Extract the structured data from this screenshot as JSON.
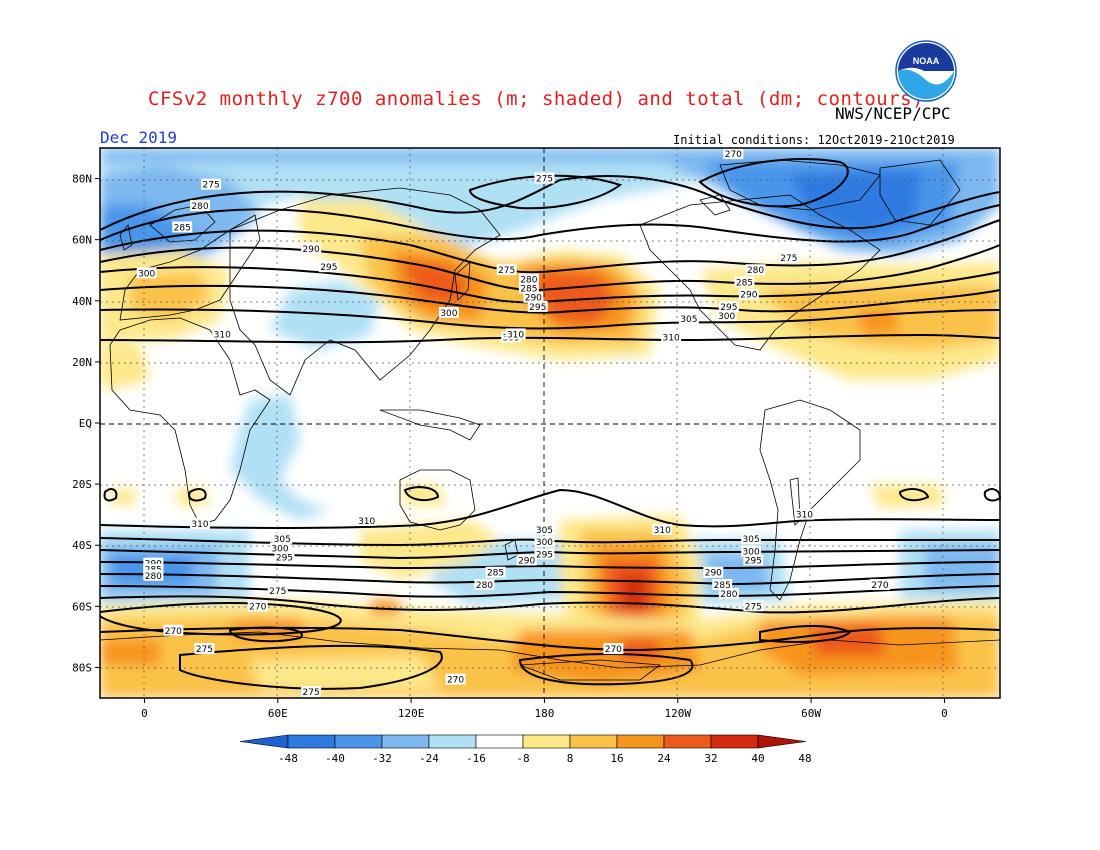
{
  "title": "CFSv2 monthly z700 anomalies (m; shaded) and total (dm; contours)",
  "agency": "NWS/NCEP/CPC",
  "month": "Dec 2019",
  "initial_conditions": "Initial conditions: 12Oct2019-21Oct2019",
  "logo_text": "NOAA",
  "lat_labels": [
    "80N",
    "60N",
    "40N",
    "20N",
    "EQ",
    "20S",
    "40S",
    "60S",
    "80S"
  ],
  "lon_labels": [
    "0",
    "60E",
    "120E",
    "180",
    "120W",
    "60W",
    "0"
  ],
  "colorbar": {
    "ticks": [
      "-48",
      "-40",
      "-32",
      "-24",
      "-16",
      "-8",
      "8",
      "16",
      "24",
      "32",
      "40",
      "48"
    ],
    "colors": [
      "#1e60d0",
      "#2d7ae0",
      "#4a95ea",
      "#7db8f0",
      "#b0e0f4",
      "#ffffff",
      "#fde88a",
      "#fbc24a",
      "#f7941e",
      "#ee5a1a",
      "#d42a10",
      "#b01208"
    ]
  },
  "contour_labels": [
    {
      "text": "270",
      "lat": 88,
      "lon": 265
    },
    {
      "text": "275",
      "lat": 80,
      "lon": 180
    },
    {
      "text": "275",
      "lat": 78,
      "lon": 30
    },
    {
      "text": "280",
      "lat": 71,
      "lon": 25
    },
    {
      "text": "285",
      "lat": 64,
      "lon": 17
    },
    {
      "text": "290",
      "lat": 57,
      "lon": 75
    },
    {
      "text": "295",
      "lat": 51,
      "lon": 83
    },
    {
      "text": "300",
      "lat": 49,
      "lon": 1
    },
    {
      "text": "305",
      "lat": 28,
      "lon": 165
    },
    {
      "text": "310",
      "lat": 29,
      "lon": 35
    },
    {
      "text": "300",
      "lat": 36,
      "lon": 137
    },
    {
      "text": "310",
      "lat": 29,
      "lon": 167
    },
    {
      "text": "275",
      "lat": 50,
      "lon": 163
    },
    {
      "text": "280",
      "lat": 47,
      "lon": 173
    },
    {
      "text": "285",
      "lat": 44,
      "lon": 173
    },
    {
      "text": "290",
      "lat": 41,
      "lon": 175
    },
    {
      "text": "295",
      "lat": 38,
      "lon": 177
    },
    {
      "text": "275",
      "lat": 54,
      "lon": 290
    },
    {
      "text": "280",
      "lat": 50,
      "lon": 275
    },
    {
      "text": "285",
      "lat": 46,
      "lon": 270
    },
    {
      "text": "290",
      "lat": 42,
      "lon": 272
    },
    {
      "text": "295",
      "lat": 38,
      "lon": 263
    },
    {
      "text": "300",
      "lat": 35,
      "lon": 262
    },
    {
      "text": "305",
      "lat": 34,
      "lon": 245
    },
    {
      "text": "310",
      "lat": 28,
      "lon": 237
    },
    {
      "text": "310",
      "lat": -33,
      "lon": 25
    },
    {
      "text": "310",
      "lat": -32,
      "lon": 100
    },
    {
      "text": "305",
      "lat": -35,
      "lon": 180
    },
    {
      "text": "300",
      "lat": -39,
      "lon": 180
    },
    {
      "text": "295",
      "lat": -43,
      "lon": 180
    },
    {
      "text": "290",
      "lat": -45,
      "lon": 172
    },
    {
      "text": "285",
      "lat": -49,
      "lon": 158
    },
    {
      "text": "280",
      "lat": -53,
      "lon": 153
    },
    {
      "text": "310",
      "lat": -35,
      "lon": 233
    },
    {
      "text": "310",
      "lat": -30,
      "lon": 297
    },
    {
      "text": "305",
      "lat": -38,
      "lon": 273
    },
    {
      "text": "300",
      "lat": -42,
      "lon": 273
    },
    {
      "text": "295",
      "lat": -45,
      "lon": 274
    },
    {
      "text": "290",
      "lat": -49,
      "lon": 256
    },
    {
      "text": "285",
      "lat": -53,
      "lon": 260
    },
    {
      "text": "280",
      "lat": -56,
      "lon": 263
    },
    {
      "text": "275",
      "lat": -60,
      "lon": 274
    },
    {
      "text": "270",
      "lat": -53,
      "lon": 331
    },
    {
      "text": "305",
      "lat": -38,
      "lon": 62
    },
    {
      "text": "300",
      "lat": -41,
      "lon": 61
    },
    {
      "text": "295",
      "lat": -44,
      "lon": 63
    },
    {
      "text": "290",
      "lat": -46,
      "lon": 4
    },
    {
      "text": "285",
      "lat": -48,
      "lon": 4
    },
    {
      "text": "280",
      "lat": -50,
      "lon": 4
    },
    {
      "text": "275",
      "lat": -55,
      "lon": 60
    },
    {
      "text": "270",
      "lat": -60,
      "lon": 51
    },
    {
      "text": "270",
      "lat": -68,
      "lon": 13
    },
    {
      "text": "275",
      "lat": -74,
      "lon": 27
    },
    {
      "text": "275",
      "lat": -88,
      "lon": 75
    },
    {
      "text": "270",
      "lat": -74,
      "lon": 211
    },
    {
      "text": "270",
      "lat": -84,
      "lon": 140
    }
  ]
}
